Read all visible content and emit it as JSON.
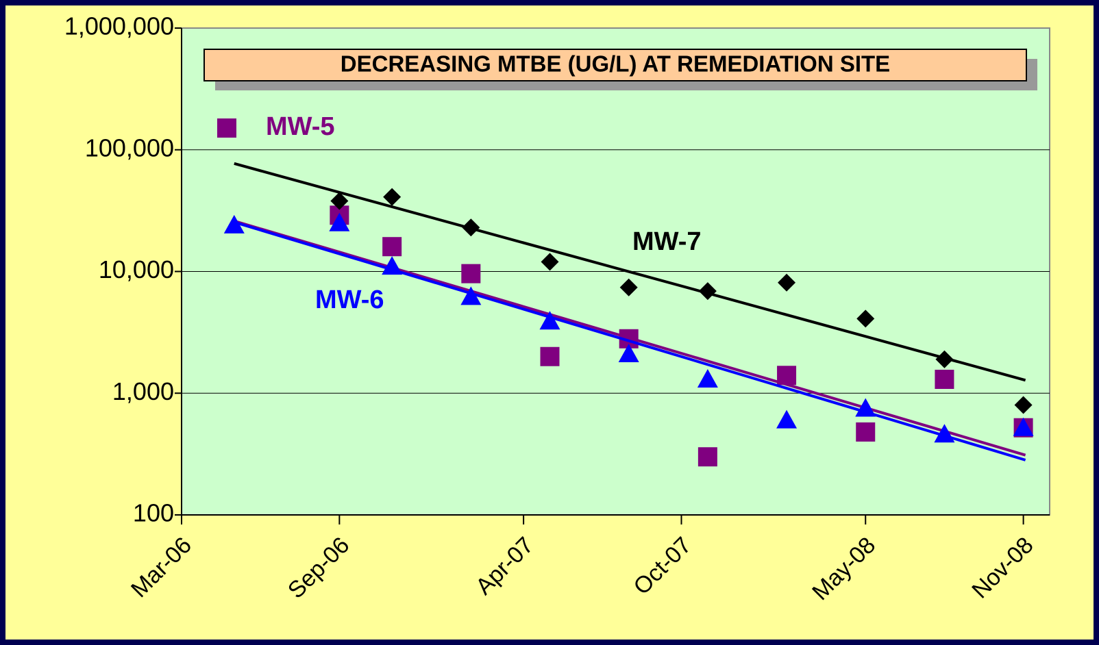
{
  "chart_data": {
    "type": "scatter",
    "title": "DECREASING MTBE (UG/L) AT REMEDIATION SITE",
    "y_scale": "log",
    "ylim": [
      100,
      1000000
    ],
    "yticks": [
      100,
      {
        "value": 1000,
        "label": "1,000"
      },
      {
        "value": 10000,
        "label": "10,000"
      },
      {
        "value": 100000,
        "label": "100,000"
      },
      {
        "value": 1000000,
        "label": "1,000,000"
      }
    ],
    "xlim": [
      "2006-03",
      "2008-12"
    ],
    "xticks": [
      {
        "value": "2006-03",
        "label": "Mar-06"
      },
      {
        "value": "2006-09",
        "label": "Sep-06"
      },
      {
        "value": "2007-04",
        "label": "Apr-07"
      },
      {
        "value": "2007-10",
        "label": "Oct-07"
      },
      {
        "value": "2008-05",
        "label": "May-08"
      },
      {
        "value": "2008-11",
        "label": "Nov-08"
      }
    ],
    "grid": true,
    "trendline": "exponential",
    "series": [
      {
        "name": "MW-5",
        "color": "#800080",
        "marker": "square",
        "x": [
          "2006-09",
          "2006-11",
          "2007-02",
          "2007-05",
          "2007-08",
          "2007-11",
          "2008-02",
          "2008-05",
          "2008-08",
          "2008-11"
        ],
        "values": [
          29000,
          16000,
          9600,
          2000,
          2800,
          300,
          1400,
          480,
          1300,
          520
        ]
      },
      {
        "name": "MW-6",
        "color": "#0000ff",
        "marker": "triangle",
        "x": [
          "2006-05",
          "2006-09",
          "2006-11",
          "2007-02",
          "2007-05",
          "2007-08",
          "2007-11",
          "2008-02",
          "2008-05",
          "2008-08",
          "2008-11"
        ],
        "values": [
          24000,
          25000,
          11000,
          6200,
          3900,
          2100,
          1300,
          600,
          750,
          460,
          520
        ]
      },
      {
        "name": "MW-7",
        "color": "#000000",
        "marker": "diamond",
        "x": [
          "2006-09",
          "2006-11",
          "2007-02",
          "2007-05",
          "2007-08",
          "2007-11",
          "2008-02",
          "2008-05",
          "2008-08",
          "2008-11"
        ],
        "values": [
          38000,
          41000,
          23000,
          12000,
          7400,
          6900,
          8100,
          4100,
          1900,
          800
        ]
      }
    ]
  }
}
